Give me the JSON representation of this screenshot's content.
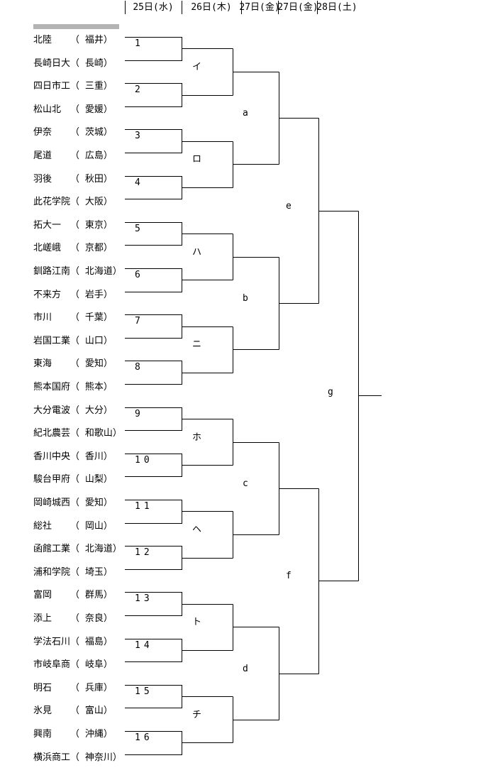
{
  "header": {
    "dates": [
      "25日(水)",
      "26日(木)",
      "27日(金)",
      "27日(金)",
      "28日(土)"
    ]
  },
  "bracket": {
    "round1_numbers": [
      "1",
      "2",
      "3",
      "4",
      "5",
      "6",
      "7",
      "8",
      "9",
      "10",
      "11",
      "12",
      "13",
      "14",
      "15",
      "16"
    ],
    "round2_labels": [
      "イ",
      "ロ",
      "ハ",
      "ニ",
      "ホ",
      "ヘ",
      "ト",
      "チ"
    ],
    "round3_labels": [
      "a",
      "b",
      "c",
      "d"
    ],
    "round4_labels": [
      "e",
      "f"
    ],
    "final_label": "g",
    "teams": [
      {
        "name": "北陸",
        "pref": "福井"
      },
      {
        "name": "長崎日大",
        "pref": "長崎"
      },
      {
        "name": "四日市工",
        "pref": "三重"
      },
      {
        "name": "松山北",
        "pref": "愛媛"
      },
      {
        "name": "伊奈",
        "pref": "茨城"
      },
      {
        "name": "尾道",
        "pref": "広島"
      },
      {
        "name": "羽後",
        "pref": "秋田"
      },
      {
        "name": "此花学院",
        "pref": "大阪"
      },
      {
        "name": "拓大一",
        "pref": "東京"
      },
      {
        "name": "北嵯峨",
        "pref": "京都"
      },
      {
        "name": "釧路江南",
        "pref": "北海道"
      },
      {
        "name": "不来方",
        "pref": "岩手"
      },
      {
        "name": "市川",
        "pref": "千葉"
      },
      {
        "name": "岩国工業",
        "pref": "山口"
      },
      {
        "name": "東海",
        "pref": "愛知"
      },
      {
        "name": "熊本国府",
        "pref": "熊本"
      },
      {
        "name": "大分電波",
        "pref": "大分"
      },
      {
        "name": "紀北農芸",
        "pref": "和歌山"
      },
      {
        "name": "香川中央",
        "pref": "香川"
      },
      {
        "name": "駿台甲府",
        "pref": "山梨"
      },
      {
        "name": "岡崎城西",
        "pref": "愛知"
      },
      {
        "name": "総社",
        "pref": "岡山"
      },
      {
        "name": "函館工業",
        "pref": "北海道"
      },
      {
        "name": "浦和学院",
        "pref": "埼玉"
      },
      {
        "name": "富岡",
        "pref": "群馬"
      },
      {
        "name": "添上",
        "pref": "奈良"
      },
      {
        "name": "学法石川",
        "pref": "福島"
      },
      {
        "name": "市岐阜商",
        "pref": "岐阜"
      },
      {
        "name": "明石",
        "pref": "兵庫"
      },
      {
        "name": "氷見",
        "pref": "富山"
      },
      {
        "name": "興南",
        "pref": "沖縄"
      },
      {
        "name": "横浜商工",
        "pref": "神奈川"
      }
    ],
    "colors": {
      "line": "#000000",
      "text": "#000000",
      "accent_bar": "#b4b4b4",
      "background": "#ffffff"
    }
  }
}
